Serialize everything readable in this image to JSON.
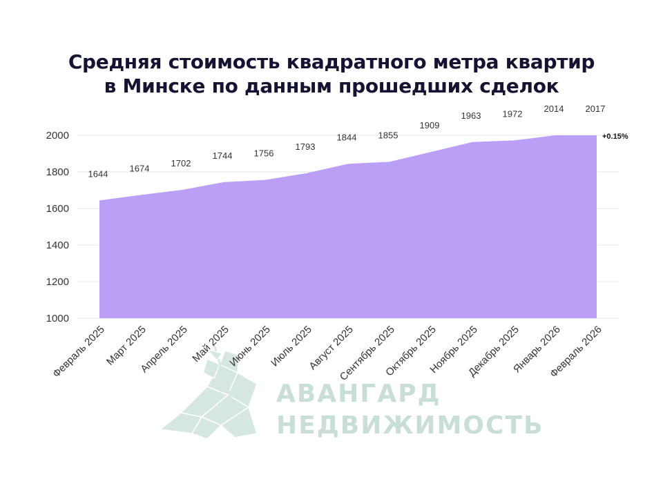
{
  "chart_data": {
    "type": "area",
    "title_lines": [
      "Средняя стоимость квадратного метра квартир",
      "в Минске по данным прошедших сделок"
    ],
    "categories": [
      "Февраль 2025",
      "Март 2025",
      "Апрель 2025",
      "Май 2025",
      "Июнь 2025",
      "Июль 2025",
      "Август 2025",
      "Сентябрь 2025",
      "Октябрь 2025",
      "Ноябрь 2025",
      "Декабрь 2025",
      "Январь 2026",
      "Февраль 2026"
    ],
    "values": [
      1644,
      1674,
      1702,
      1744,
      1756,
      1793,
      1844,
      1855,
      1909,
      1963,
      1972,
      2014,
      2017
    ],
    "ylim": [
      1000,
      2000
    ],
    "yticks": [
      1000,
      1200,
      1400,
      1600,
      1800,
      2000
    ],
    "last_change_label": "+0.15%",
    "fill_color": "#bb9ff7",
    "grid": true,
    "legend": "none"
  },
  "watermark": {
    "line1": "АВАНГАРД",
    "line2": "НЕДВИЖИМОСТЬ",
    "color": "#c9ded9",
    "icon": "horse-rider-logo"
  }
}
